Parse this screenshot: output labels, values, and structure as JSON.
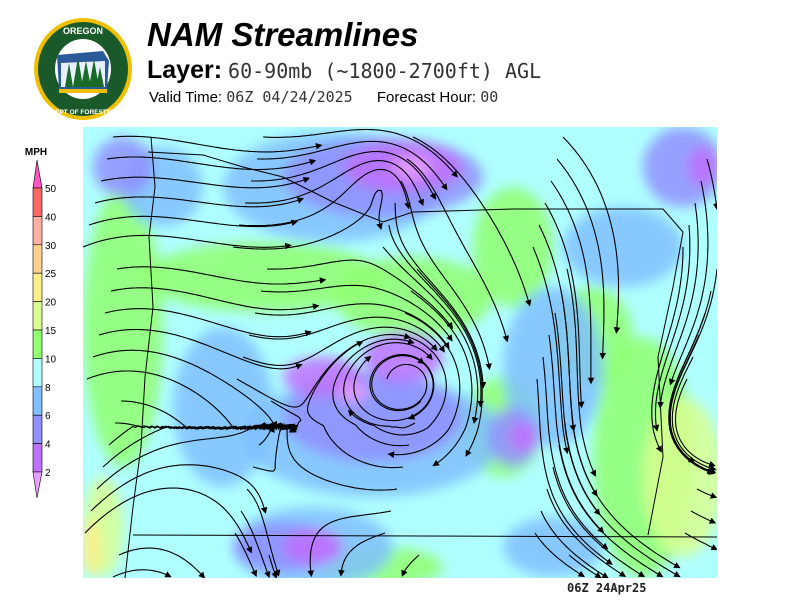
{
  "header": {
    "logo_text_top": "OREGON",
    "logo_text_bottom": "DEPARTMENT OF FORESTRY",
    "title": "NAM Streamlines",
    "layer_label": "Layer:",
    "layer_value": "60-90mb (~1800-2700ft) AGL",
    "valid_time_label": "Valid Time:",
    "valid_time_value": "06Z 04/24/2025",
    "forecast_hour_label": "Forecast Hour:",
    "forecast_hour_value": "00"
  },
  "legend": {
    "unit": "MPH",
    "ticks": [
      "50",
      "40",
      "30",
      "25",
      "20",
      "15",
      "10",
      "8",
      "6",
      "4",
      "2"
    ],
    "colors": {
      "above_50": "#ff55c0",
      "40-50": "#ff6666",
      "30-40": "#ffb0a0",
      "25-30": "#ffd090",
      "20-25": "#fff088",
      "15-20": "#d8ff90",
      "10-15": "#90ff70",
      "8-10": "#b0ffff",
      "6-8": "#80c0ff",
      "4-6": "#9090ff",
      "2-4": "#c070ff",
      "below_2": "#e8a0ff"
    }
  },
  "map": {
    "region": "Oregon",
    "field": "wind speed with streamlines"
  },
  "footer": {
    "timestamp": "06Z 24Apr25"
  }
}
